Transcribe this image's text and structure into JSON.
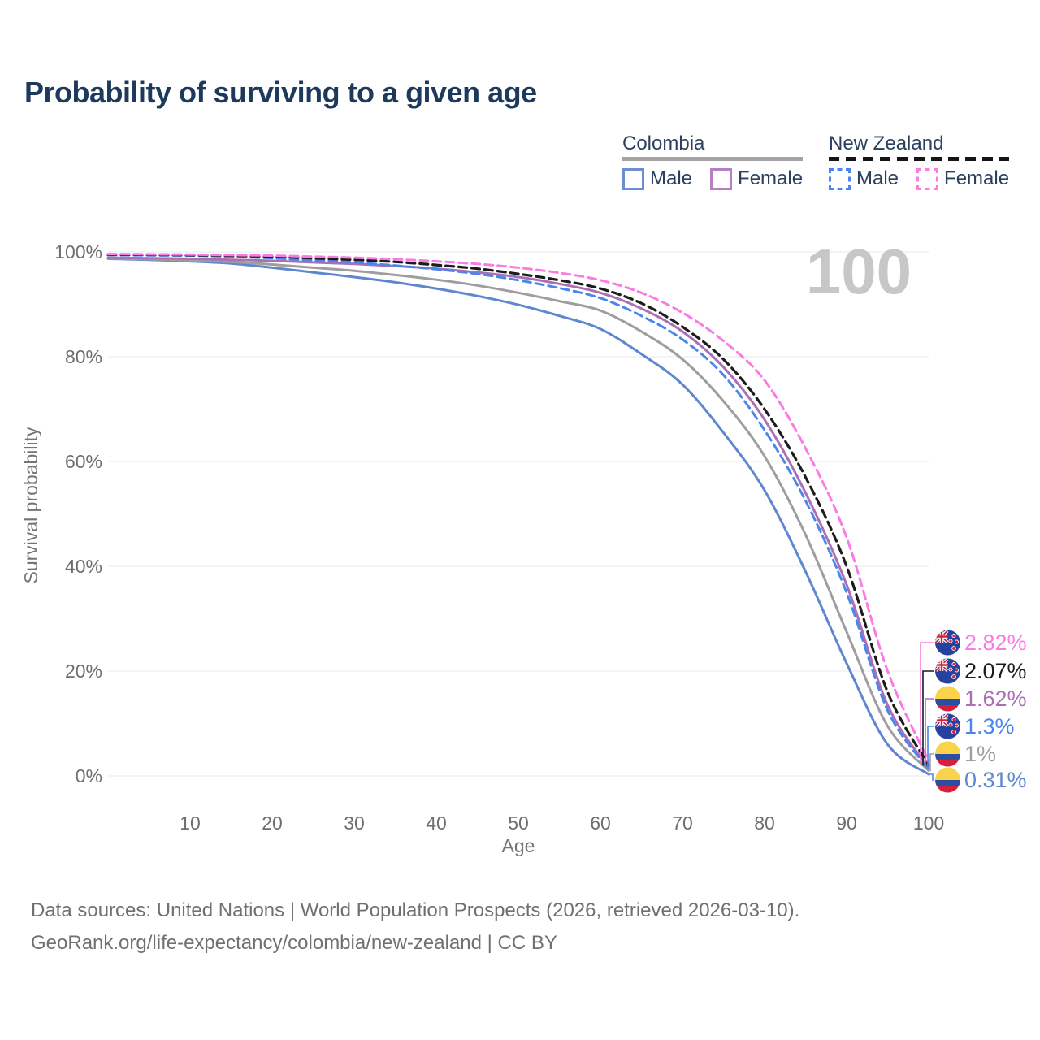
{
  "title": "Probability of surviving to a given age",
  "watermark": "100",
  "legend": {
    "groups": [
      {
        "country": "Colombia",
        "line_style": "solid",
        "items": [
          {
            "label": "Male"
          },
          {
            "label": "Female"
          }
        ]
      },
      {
        "country": "New Zealand",
        "line_style": "dashed",
        "items": [
          {
            "label": "Male"
          },
          {
            "label": "Female"
          }
        ]
      }
    ]
  },
  "chart_data": {
    "type": "line",
    "title": "Probability of surviving to a given age",
    "xlabel": "Age",
    "ylabel": "Survival probability",
    "xlim": [
      0,
      100
    ],
    "ylim": [
      0,
      100
    ],
    "grid": "horizontal-only",
    "x_ticks": [
      10,
      20,
      30,
      40,
      50,
      60,
      70,
      80,
      90,
      100
    ],
    "y_ticks": [
      {
        "value": 0,
        "label": "0%"
      },
      {
        "value": 20,
        "label": "20%"
      },
      {
        "value": 40,
        "label": "40%"
      },
      {
        "value": 60,
        "label": "60%"
      },
      {
        "value": 80,
        "label": "80%"
      },
      {
        "value": 100,
        "label": "100%"
      }
    ],
    "hover_age_indicator": "100",
    "x": [
      0,
      5,
      10,
      15,
      20,
      25,
      30,
      35,
      40,
      45,
      50,
      55,
      60,
      65,
      70,
      75,
      80,
      85,
      90,
      95,
      100
    ],
    "series": [
      {
        "name": "Colombia Male",
        "country": "Colombia",
        "sex": "Male",
        "line_style": "solid",
        "color": "#5e87cf",
        "end_label": "0.31%",
        "values": [
          98.7,
          98.5,
          98.2,
          97.8,
          97.0,
          96.1,
          95.2,
          94.2,
          93.0,
          91.6,
          89.9,
          87.8,
          85.3,
          80.5,
          74.7,
          65.5,
          54.5,
          39.0,
          21.5,
          6.0,
          0.31
        ]
      },
      {
        "name": "Colombia Both sexes",
        "country": "Colombia",
        "sex": "Both",
        "line_style": "solid",
        "color": "#9e9e9e",
        "end_label": "1%",
        "values": [
          98.8,
          98.6,
          98.4,
          98.1,
          97.6,
          97.0,
          96.4,
          95.6,
          94.7,
          93.6,
          92.2,
          90.6,
          88.8,
          84.8,
          79.5,
          71.5,
          61.0,
          46.0,
          27.5,
          9.5,
          1.0
        ]
      },
      {
        "name": "Colombia Female",
        "country": "Colombia",
        "sex": "Female",
        "line_style": "solid",
        "color": "#ab70b4",
        "end_label": "1.62%",
        "values": [
          98.9,
          98.8,
          98.7,
          98.5,
          98.3,
          98.0,
          97.7,
          97.3,
          96.8,
          96.1,
          95.2,
          93.9,
          92.2,
          89.2,
          84.8,
          78.0,
          68.0,
          54.0,
          36.5,
          13.5,
          1.62
        ]
      },
      {
        "name": "New Zealand Male",
        "country": "New Zealand",
        "sex": "Male",
        "line_style": "dashed",
        "color": "#4b86ed",
        "end_label": "1.3%",
        "values": [
          99.4,
          99.35,
          99.3,
          99.1,
          98.8,
          98.4,
          98.0,
          97.4,
          96.7,
          95.8,
          94.6,
          93.1,
          91.2,
          87.8,
          83.3,
          76.5,
          66.0,
          52.5,
          35.0,
          12.5,
          1.3
        ]
      },
      {
        "name": "New Zealand Both sexes",
        "country": "New Zealand",
        "sex": "Both",
        "line_style": "dashed",
        "color": "#1c1c1c",
        "end_label": "2.07%",
        "values": [
          99.5,
          99.45,
          99.4,
          99.3,
          99.1,
          98.8,
          98.5,
          98.1,
          97.5,
          96.8,
          95.8,
          94.6,
          93.0,
          90.2,
          85.7,
          79.5,
          70.0,
          57.0,
          40.0,
          16.0,
          2.07
        ]
      },
      {
        "name": "New Zealand Female",
        "country": "New Zealand",
        "sex": "Female",
        "line_style": "dashed",
        "color": "#fa7ce2",
        "end_label": "2.82%",
        "values": [
          99.6,
          99.55,
          99.5,
          99.4,
          99.3,
          99.1,
          98.9,
          98.6,
          98.2,
          97.7,
          97.0,
          96.0,
          94.6,
          92.2,
          88.4,
          83.0,
          75.5,
          62.5,
          45.5,
          20.0,
          2.82
        ]
      }
    ]
  },
  "footer": {
    "line1": "Data sources: United Nations | World Population Prospects (2026, retrieved 2026-03-10).",
    "line2": "GeoRank.org/life-expectancy/colombia/new-zealand | CC BY"
  }
}
